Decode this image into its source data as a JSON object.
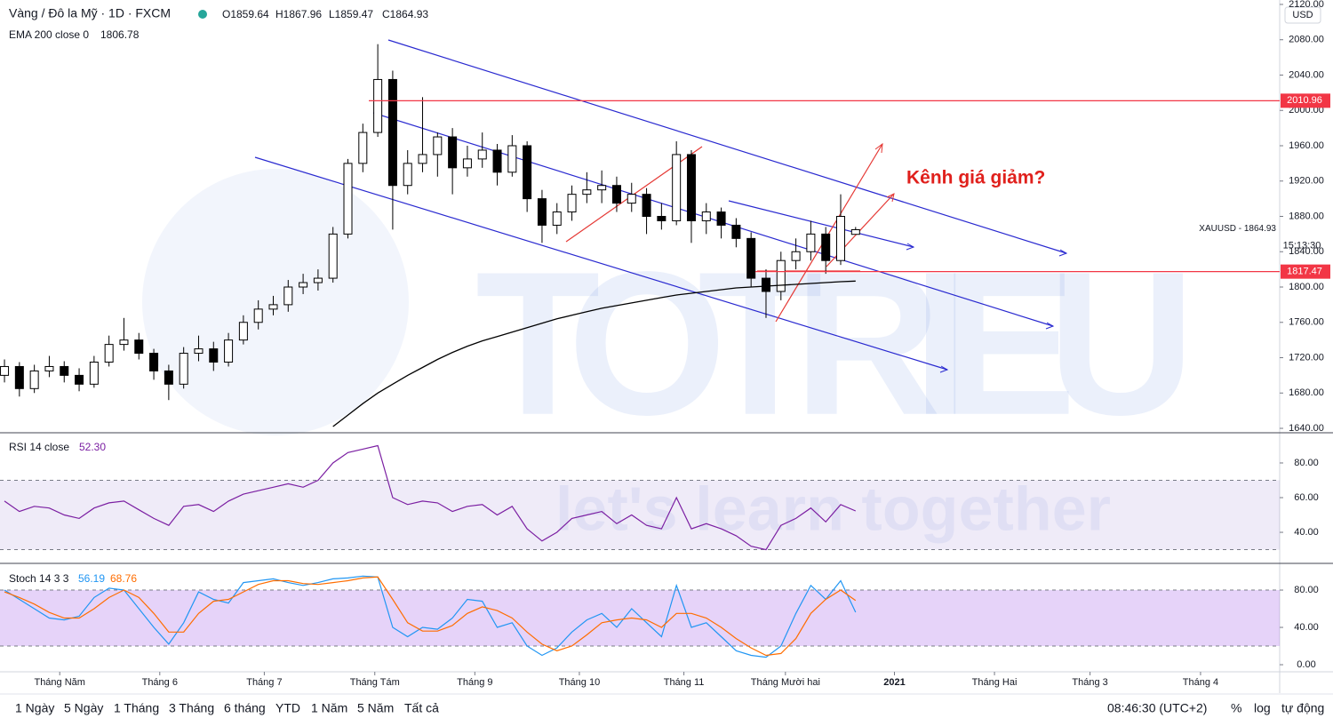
{
  "header": {
    "indicator_value_note": null
  },
  "watermark": {
    "title": "TOTRIEU",
    "slogan": "let's learn together"
  },
  "toolbar": {
    "ranges": [
      "1 Ngày",
      "5 Ngày",
      "1 Tháng",
      "3 Tháng",
      "6 tháng",
      "YTD",
      "1 Năm",
      "5 Năm",
      "Tất cả"
    ],
    "clock": "08:46:30 (UTC+2)",
    "options": [
      "%",
      "log",
      "tự động"
    ]
  },
  "chart_data": [
    {
      "type": "candlestick",
      "title": "Vàng / Đô la Mỹ · 1D · FXCM",
      "ohlc_labels": [
        "O1859.64",
        "H1867.96",
        "L1859.47",
        "C1864.93"
      ],
      "open": [
        1700,
        1710,
        1685,
        1705,
        1710,
        1700,
        1690,
        1715,
        1735,
        1740,
        1725,
        1705,
        1690,
        1725,
        1730,
        1715,
        1740,
        1760,
        1775,
        1780,
        1800,
        1805,
        1810,
        1860,
        1940,
        1975,
        2035,
        1915,
        1940,
        1950,
        1970,
        1935,
        1945,
        1955,
        1930,
        1960,
        1900,
        1870,
        1885,
        1905,
        1910,
        1915,
        1895,
        1905,
        1880,
        1875,
        1950,
        1875,
        1885,
        1870,
        1855,
        1810,
        1795,
        1830,
        1840,
        1860,
        1830,
        1859.64
      ],
      "high": [
        1718,
        1715,
        1712,
        1722,
        1716,
        1708,
        1722,
        1745,
        1765,
        1748,
        1730,
        1712,
        1732,
        1745,
        1738,
        1748,
        1768,
        1785,
        1790,
        1808,
        1815,
        1820,
        1868,
        1945,
        1985,
        2075,
        2045,
        1955,
        2015,
        1975,
        1980,
        1960,
        1975,
        1962,
        1972,
        1965,
        1910,
        1895,
        1915,
        1930,
        1932,
        1925,
        1918,
        1912,
        1895,
        1965,
        1955,
        1895,
        1890,
        1878,
        1862,
        1820,
        1840,
        1855,
        1875,
        1868,
        1905,
        1867.96
      ],
      "low": [
        1692,
        1676,
        1680,
        1698,
        1692,
        1682,
        1686,
        1710,
        1728,
        1718,
        1695,
        1672,
        1685,
        1716,
        1705,
        1710,
        1735,
        1752,
        1768,
        1772,
        1792,
        1796,
        1805,
        1855,
        1930,
        1970,
        1865,
        1905,
        1930,
        1925,
        1905,
        1925,
        1935,
        1915,
        1925,
        1885,
        1850,
        1860,
        1875,
        1895,
        1895,
        1885,
        1885,
        1860,
        1865,
        1870,
        1850,
        1860,
        1855,
        1845,
        1800,
        1765,
        1785,
        1820,
        1830,
        1815,
        1825,
        1859.47
      ],
      "close": [
        1710,
        1685,
        1705,
        1710,
        1700,
        1690,
        1715,
        1735,
        1740,
        1725,
        1705,
        1690,
        1725,
        1730,
        1715,
        1740,
        1760,
        1775,
        1780,
        1800,
        1805,
        1810,
        1860,
        1940,
        1975,
        2035,
        1915,
        1940,
        1950,
        1970,
        1935,
        1945,
        1955,
        1930,
        1960,
        1900,
        1870,
        1885,
        1905,
        1910,
        1915,
        1895,
        1905,
        1880,
        1875,
        1950,
        1875,
        1885,
        1870,
        1855,
        1810,
        1795,
        1830,
        1840,
        1860,
        1830,
        1880,
        1864.93
      ],
      "up_color": "#ffffff",
      "down_color": "#000000",
      "xlim": [
        -0.3,
        85.4
      ],
      "xticks": [
        {
          "value": 3.7,
          "label": "Tháng Năm"
        },
        {
          "value": 10.4,
          "label": "Tháng 6"
        },
        {
          "value": 17.4,
          "label": "Tháng 7"
        },
        {
          "value": 24.8,
          "label": "Tháng Tám"
        },
        {
          "value": 31.5,
          "label": "Tháng 9"
        },
        {
          "value": 38.5,
          "label": "Tháng 10"
        },
        {
          "value": 45.5,
          "label": "Tháng 11"
        },
        {
          "value": 52.3,
          "label": "Tháng Mười hai"
        },
        {
          "value": 59.6,
          "label": "2021"
        },
        {
          "value": 66.3,
          "label": "Tháng Hai"
        },
        {
          "value": 72.7,
          "label": "Tháng 3"
        },
        {
          "value": 80.1,
          "label": "Tháng 4"
        }
      ],
      "ylim": [
        1635,
        2125
      ],
      "yticks": [
        {
          "value": 2120,
          "label": "2120.00"
        },
        {
          "value": 2080,
          "label": "2080.00"
        },
        {
          "value": 2040,
          "label": "2040.00"
        },
        {
          "value": 2000,
          "label": "2000.00"
        },
        {
          "value": 1960,
          "label": "1960.00"
        },
        {
          "value": 1920,
          "label": "1920.00"
        },
        {
          "value": 1880,
          "label": "1880.00"
        },
        {
          "value": 1840,
          "label": "1840.00"
        },
        {
          "value": 1800,
          "label": "1800.00"
        },
        {
          "value": 1760,
          "label": "1760.00"
        },
        {
          "value": 1720,
          "label": "1720.00"
        },
        {
          "value": 1680,
          "label": "1680.00"
        },
        {
          "value": 1640,
          "label": "1640.00"
        }
      ],
      "currency": "USD",
      "series": [
        {
          "name": "EMA 200 close 0",
          "color": "#000000",
          "values": [
            null,
            null,
            null,
            null,
            null,
            null,
            null,
            null,
            null,
            null,
            null,
            null,
            null,
            null,
            null,
            null,
            null,
            null,
            null,
            null,
            null,
            null,
            1642,
            1655,
            1668,
            1680,
            1690,
            1700,
            1709,
            1718,
            1726,
            1733,
            1739,
            1744,
            1749,
            1754,
            1759,
            1764,
            1768,
            1772,
            1776,
            1779,
            1782,
            1785,
            1788,
            1791,
            1793,
            1795,
            1797,
            1799,
            1800,
            1801,
            1802,
            1803,
            1804,
            1805,
            1806,
            1806.78
          ]
        }
      ],
      "levels": [
        {
          "value": 2010.96,
          "color": "#f23645"
        },
        {
          "value": 1817.47,
          "color": "#f23645"
        }
      ],
      "last_price_label": "XAUUSD - 1864.93",
      "countdown": "15:13:30",
      "annotation": "Kênh giá giảm?"
    },
    {
      "type": "line",
      "title": "RSI 14 close",
      "series": [
        {
          "color": "#7b1fa2",
          "values": [
            58,
            52,
            55,
            54,
            50,
            48,
            54,
            57,
            58,
            53,
            48,
            44,
            55,
            56,
            52,
            58,
            62,
            64,
            66,
            68,
            66,
            70,
            80,
            86,
            88,
            90,
            60,
            56,
            58,
            57,
            52,
            55,
            56,
            50,
            55,
            42,
            35,
            40,
            48,
            50,
            52,
            45,
            50,
            44,
            42,
            60,
            42,
            45,
            42,
            38,
            32,
            30,
            44,
            48,
            54,
            46,
            56,
            52.3
          ],
          "value_label": "52.30"
        }
      ],
      "band": [
        30,
        70
      ],
      "ylim": [
        22.6,
        96.9
      ],
      "yticks": [
        {
          "value": 80,
          "label": "80.00"
        },
        {
          "value": 60,
          "label": "60.00"
        },
        {
          "value": 40,
          "label": "40.00"
        }
      ]
    },
    {
      "type": "line",
      "title": "Stoch 14 3 3",
      "series": [
        {
          "color": "#2196f3",
          "values": [
            80,
            70,
            60,
            50,
            48,
            52,
            72,
            82,
            80,
            60,
            40,
            22,
            45,
            78,
            70,
            66,
            88,
            90,
            92,
            88,
            85,
            88,
            92,
            93,
            95,
            94,
            40,
            30,
            40,
            38,
            50,
            70,
            68,
            40,
            45,
            20,
            10,
            18,
            35,
            48,
            55,
            40,
            60,
            45,
            30,
            85,
            40,
            45,
            30,
            15,
            10,
            8,
            20,
            55,
            85,
            70,
            90,
            56.19
          ]
        },
        {
          "color": "#ff6d00",
          "values": [
            78,
            72,
            65,
            56,
            50,
            50,
            60,
            72,
            80,
            72,
            55,
            35,
            35,
            55,
            68,
            70,
            78,
            86,
            90,
            90,
            87,
            86,
            88,
            90,
            93,
            94,
            70,
            45,
            36,
            36,
            42,
            55,
            62,
            58,
            50,
            35,
            22,
            15,
            20,
            32,
            45,
            48,
            50,
            48,
            40,
            55,
            55,
            50,
            40,
            28,
            18,
            10,
            12,
            28,
            55,
            70,
            80,
            68.76
          ]
        }
      ],
      "band": [
        20,
        80
      ],
      "ylim": [
        -7.6,
        106.7
      ],
      "yticks": [
        {
          "value": 80,
          "label": "80.00"
        },
        {
          "value": 40,
          "label": "40.00"
        },
        {
          "value": 0,
          "label": "0.00"
        }
      ]
    }
  ]
}
